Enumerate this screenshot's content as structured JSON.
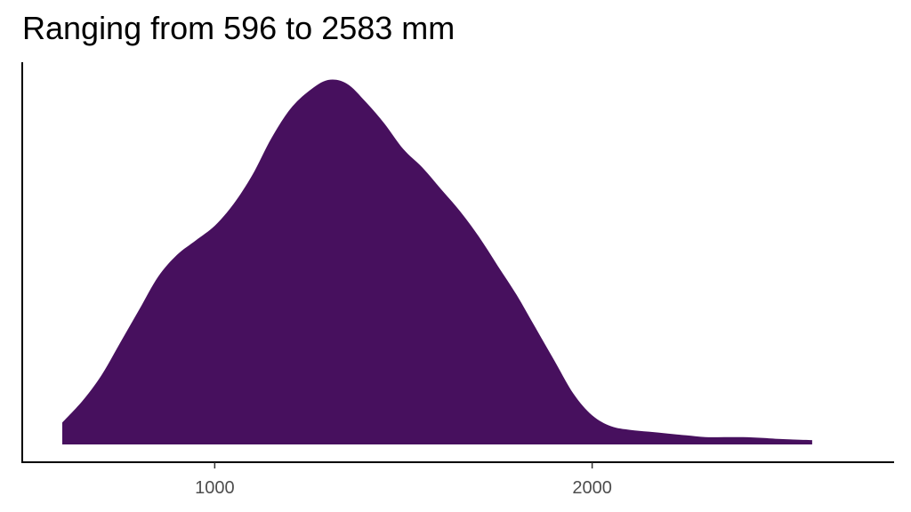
{
  "chart_data": {
    "type": "area",
    "title": "Ranging from 596 to 2583 mm",
    "xlabel": "",
    "ylabel": "",
    "xlim": [
      490,
      2800
    ],
    "ylim": [
      0,
      1
    ],
    "x_ticks": [
      1000,
      2000
    ],
    "y_ticks": [],
    "grid": false,
    "legend": "none",
    "fill_color": "#47105E",
    "series": [
      {
        "x": [
          596,
          650,
          700,
          750,
          800,
          850,
          900,
          950,
          1000,
          1050,
          1100,
          1150,
          1200,
          1250,
          1300,
          1350,
          1400,
          1450,
          1500,
          1550,
          1600,
          1650,
          1700,
          1750,
          1800,
          1850,
          1900,
          1950,
          2000,
          2050,
          2100,
          2150,
          2200,
          2250,
          2300,
          2350,
          2400,
          2450,
          2500,
          2583
        ],
        "values": [
          0.06,
          0.12,
          0.19,
          0.28,
          0.37,
          0.46,
          0.52,
          0.56,
          0.6,
          0.66,
          0.74,
          0.84,
          0.92,
          0.97,
          1.0,
          0.99,
          0.94,
          0.88,
          0.81,
          0.76,
          0.7,
          0.64,
          0.57,
          0.49,
          0.41,
          0.32,
          0.23,
          0.14,
          0.08,
          0.05,
          0.04,
          0.035,
          0.03,
          0.025,
          0.02,
          0.02,
          0.02,
          0.018,
          0.015,
          0.012
        ]
      }
    ]
  }
}
